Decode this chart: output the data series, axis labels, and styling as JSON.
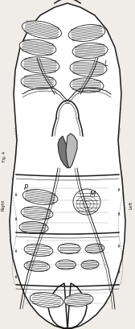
{
  "background_color": "#f0ede8",
  "line_color": "#1a1a1a",
  "label_L": "L",
  "label_M": "M",
  "label_P": "P",
  "label_right": "Right",
  "label_left": "Left",
  "fig4": "Fig. 4"
}
